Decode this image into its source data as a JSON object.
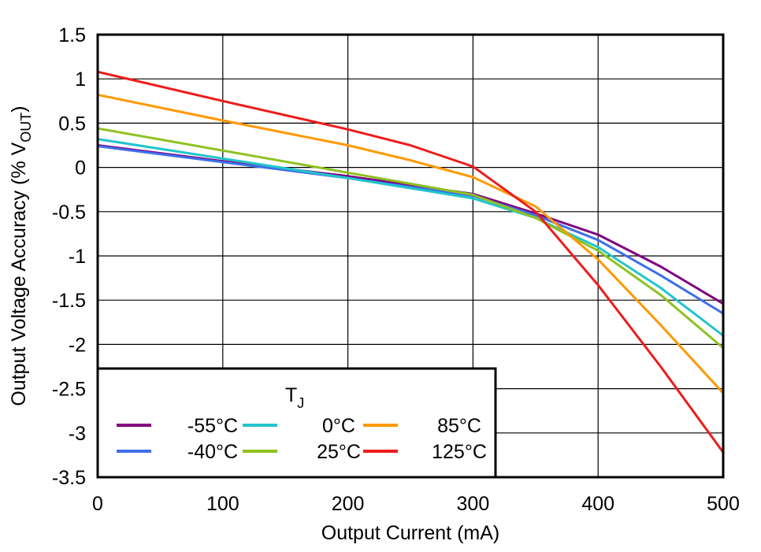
{
  "chart_data": {
    "type": "line",
    "title": "",
    "xlabel": "Output Current (mA)",
    "ylabel": {
      "prefix": "Output Voltage Accuracy (% V",
      "subscript": "OUT",
      "suffix": ")"
    },
    "xlim": [
      0,
      500
    ],
    "ylim": [
      -3.5,
      1.5
    ],
    "xticks": [
      0,
      100,
      200,
      300,
      400,
      500
    ],
    "xtick_labels": [
      "0",
      "100",
      "200",
      "300",
      "400",
      "500"
    ],
    "yticks": [
      1.5,
      1,
      0.5,
      0,
      -0.5,
      -1,
      -1.5,
      -2,
      -2.5,
      -3,
      -3.5
    ],
    "ytick_labels": [
      "1.5",
      "1",
      "0.5",
      "0",
      "-0.5",
      "-1",
      "-1.5",
      "-2",
      "-2.5",
      "-3",
      "-3.5"
    ],
    "grid": true,
    "legend": {
      "title": "T",
      "title_subscript": "J",
      "placement": "bottom-left"
    },
    "series": [
      {
        "name": "-55°C",
        "color": "#800080",
        "x": [
          0,
          100,
          200,
          300,
          350,
          400,
          450,
          500
        ],
        "y": [
          0.25,
          0.07,
          -0.1,
          -0.3,
          -0.52,
          -0.76,
          -1.12,
          -1.54
        ]
      },
      {
        "name": "-40°C",
        "color": "#3F6FE8",
        "x": [
          0,
          100,
          200,
          300,
          350,
          400,
          450,
          500
        ],
        "y": [
          0.24,
          0.06,
          -0.12,
          -0.32,
          -0.54,
          -0.82,
          -1.22,
          -1.65
        ]
      },
      {
        "name": "0°C",
        "color": "#22C5CC",
        "x": [
          0,
          100,
          200,
          300,
          350,
          400,
          450,
          500
        ],
        "y": [
          0.32,
          0.1,
          -0.12,
          -0.35,
          -0.57,
          -0.9,
          -1.36,
          -1.9
        ]
      },
      {
        "name": "25°C",
        "color": "#8EC21E",
        "x": [
          0,
          100,
          200,
          300,
          350,
          400,
          450,
          500
        ],
        "y": [
          0.44,
          0.19,
          -0.06,
          -0.31,
          -0.57,
          -0.94,
          -1.44,
          -2.04
        ]
      },
      {
        "name": "85°C",
        "color": "#FF9900",
        "x": [
          0,
          100,
          200,
          250,
          300,
          350,
          400,
          450,
          500
        ],
        "y": [
          0.82,
          0.53,
          0.25,
          0.08,
          -0.11,
          -0.44,
          -1.04,
          -1.78,
          -2.55
        ]
      },
      {
        "name": "125°C",
        "color": "#EE1C1C",
        "x": [
          0,
          100,
          200,
          250,
          300,
          350,
          400,
          450,
          500
        ],
        "y": [
          1.08,
          0.75,
          0.43,
          0.25,
          0.01,
          -0.5,
          -1.33,
          -2.25,
          -3.22
        ]
      }
    ]
  }
}
